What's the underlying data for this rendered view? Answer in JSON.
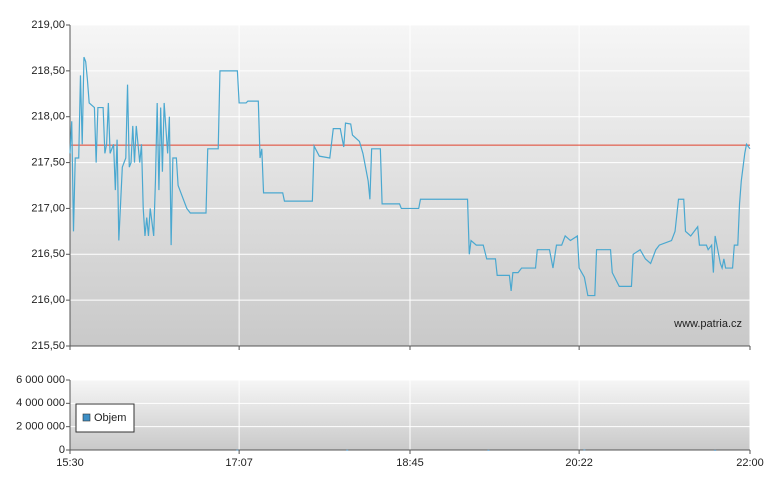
{
  "chart_data": [
    {
      "type": "line",
      "x": [
        "15:30",
        "15:31",
        "15:32",
        "15:33",
        "15:35",
        "15:36",
        "15:37",
        "15:38",
        "15:39",
        "15:40",
        "15:41",
        "15:44",
        "15:45",
        "15:46",
        "15:49",
        "15:50",
        "15:51",
        "15:52",
        "15:53",
        "15:55",
        "15:56",
        "15:57",
        "15:58",
        "16:00",
        "16:02",
        "16:03",
        "16:04",
        "16:05",
        "16:06",
        "16:07",
        "16:08",
        "16:10",
        "16:11",
        "16:12",
        "16:13",
        "16:14",
        "16:15",
        "16:16",
        "16:18",
        "16:19",
        "16:20",
        "16:21",
        "16:22",
        "16:23",
        "16:24",
        "16:26",
        "16:27",
        "16:28",
        "16:29",
        "16:31",
        "16:32",
        "16:33",
        "16:34",
        "16:37",
        "16:39",
        "16:48",
        "16:49",
        "16:55",
        "16:56",
        "17:06",
        "17:07",
        "17:11",
        "17:12",
        "17:18",
        "17:19",
        "17:20",
        "17:21",
        "17:32",
        "17:33",
        "17:49",
        "17:50",
        "17:53",
        "17:59",
        "18:01",
        "18:05",
        "18:07",
        "18:08",
        "18:11",
        "18:12",
        "18:16",
        "18:18",
        "18:21",
        "18:22",
        "18:23",
        "18:28",
        "18:29",
        "18:39",
        "18:40",
        "18:50",
        "18:51",
        "19:18",
        "19:19",
        "19:20",
        "19:23",
        "19:27",
        "19:29",
        "19:34",
        "19:35",
        "19:42",
        "19:43",
        "19:44",
        "19:47",
        "19:49",
        "19:57",
        "19:58",
        "20:05",
        "20:07",
        "20:09",
        "20:12",
        "20:14",
        "20:17",
        "20:21",
        "20:22",
        "20:25",
        "20:27",
        "20:31",
        "20:32",
        "20:40",
        "20:41",
        "20:45",
        "20:52",
        "20:53",
        "20:57",
        "21:00",
        "21:03",
        "21:06",
        "21:08",
        "21:15",
        "21:17",
        "21:19",
        "21:22",
        "21:23",
        "21:26",
        "21:30",
        "21:31",
        "21:35",
        "21:36",
        "21:38",
        "21:39",
        "21:40",
        "21:43",
        "21:44",
        "21:45",
        "21:46",
        "21:50",
        "21:51",
        "21:53",
        "21:54",
        "21:55",
        "21:57",
        "21:58",
        "22:00"
      ],
      "values": [
        217.6,
        217.95,
        216.75,
        217.55,
        217.55,
        218.45,
        217.7,
        218.65,
        218.6,
        218.4,
        218.15,
        218.1,
        217.5,
        218.1,
        218.1,
        217.6,
        217.7,
        218.15,
        217.6,
        217.7,
        217.2,
        217.75,
        216.65,
        217.45,
        217.55,
        218.35,
        217.45,
        217.5,
        217.9,
        217.5,
        217.9,
        217.5,
        217.7,
        217.0,
        216.7,
        216.9,
        216.7,
        217.0,
        216.7,
        217.3,
        218.15,
        217.2,
        218.1,
        217.4,
        218.15,
        217.6,
        218.0,
        216.6,
        217.55,
        217.55,
        217.25,
        217.2,
        217.15,
        217.0,
        216.95,
        216.95,
        217.65,
        217.65,
        218.5,
        218.5,
        218.15,
        218.15,
        218.17,
        218.17,
        217.55,
        217.65,
        217.17,
        217.17,
        217.08,
        217.08,
        217.68,
        217.57,
        217.55,
        217.87,
        217.87,
        217.67,
        217.93,
        217.92,
        217.8,
        217.73,
        217.6,
        217.3,
        217.1,
        217.65,
        217.65,
        217.05,
        217.05,
        217.0,
        217.0,
        217.1,
        217.1,
        216.5,
        216.65,
        216.6,
        216.6,
        216.45,
        216.45,
        216.27,
        216.27,
        216.1,
        216.3,
        216.3,
        216.35,
        216.35,
        216.55,
        216.55,
        216.35,
        216.6,
        216.6,
        216.7,
        216.65,
        216.7,
        216.35,
        216.25,
        216.05,
        216.05,
        216.55,
        216.55,
        216.3,
        216.15,
        216.15,
        216.5,
        216.55,
        216.45,
        216.4,
        216.55,
        216.6,
        216.65,
        216.75,
        217.1,
        217.1,
        216.75,
        216.7,
        216.8,
        216.6,
        216.6,
        216.55,
        216.6,
        216.3,
        216.7,
        216.4,
        216.35,
        216.45,
        216.35,
        216.35,
        216.6,
        216.6,
        217.05,
        217.3,
        217.6,
        217.7,
        217.65
      ],
      "color": "#4aa8d0",
      "reference_line": 217.69,
      "reference_color": "#e0412c",
      "xlim": [
        "15:30",
        "22:00"
      ],
      "ylim": [
        215.5,
        219
      ],
      "yticks": [
        {
          "value": 215.5,
          "label": "215,50"
        },
        {
          "value": 216,
          "label": "216,00"
        },
        {
          "value": 216.5,
          "label": "216,50"
        },
        {
          "value": 217,
          "label": "217,00"
        },
        {
          "value": 217.5,
          "label": "217,50"
        },
        {
          "value": 218,
          "label": "218,00"
        },
        {
          "value": 218.5,
          "label": "218,50"
        },
        {
          "value": 219,
          "label": "219,00"
        }
      ],
      "watermark": "www.patria.cz",
      "grid": true
    },
    {
      "type": "bar",
      "x": [
        "17:06",
        "18:09",
        "19:30",
        "20:25",
        "21:40"
      ],
      "series": [
        {
          "name": "Objem",
          "color": "#3d8fc6",
          "values": [
            30000,
            20000,
            15000,
            40000,
            10000
          ]
        }
      ],
      "xlim": [
        "15:30",
        "22:00"
      ],
      "xticks": [
        "15:30",
        "17:07",
        "18:45",
        "20:22",
        "22:00"
      ],
      "ylim": [
        0,
        6000000
      ],
      "yticks": [
        0,
        {
          "value": 2000000,
          "label": "2 000 000"
        },
        {
          "value": 4000000,
          "label": "4 000 000"
        },
        {
          "value": 6000000,
          "label": "6 000 000"
        }
      ],
      "legend": "upper left",
      "grid": true
    }
  ]
}
